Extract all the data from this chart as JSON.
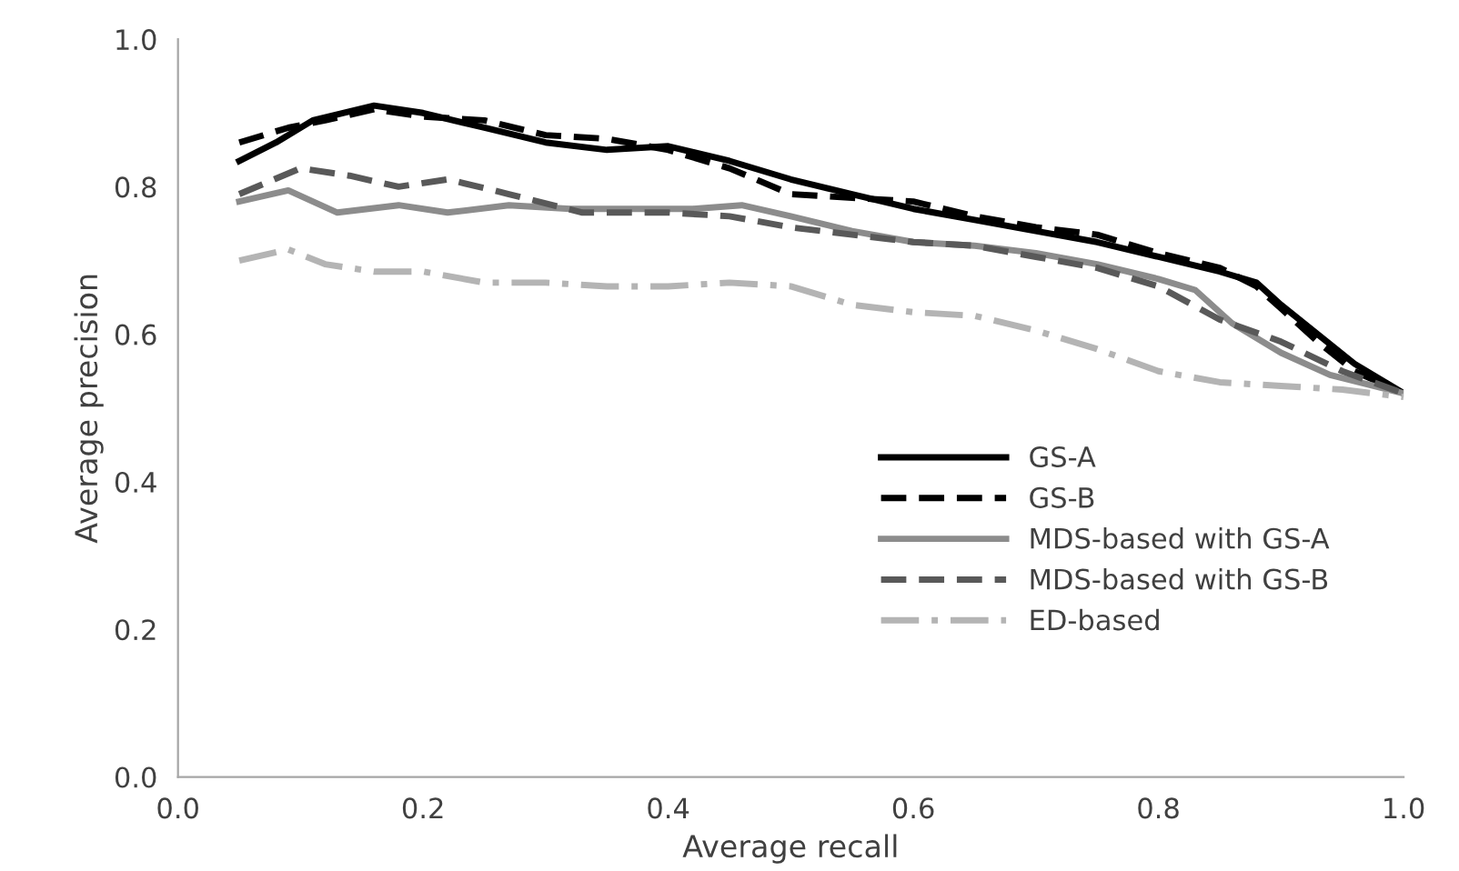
{
  "chart_data": {
    "type": "line",
    "xlabel": "Average recall",
    "ylabel": "Average precision",
    "xlim": [
      0.0,
      1.0
    ],
    "ylim": [
      0.0,
      1.0
    ],
    "xticks": [
      {
        "value": 0,
        "label": "0.0"
      },
      {
        "value": 0.2,
        "label": "0.2"
      },
      {
        "value": 0.4,
        "label": "0.4"
      },
      {
        "value": 0.6,
        "label": "0.6"
      },
      {
        "value": 0.8,
        "label": "0.8"
      },
      {
        "value": 1,
        "label": "1.0"
      }
    ],
    "yticks": [
      {
        "value": 0,
        "label": "0.0"
      },
      {
        "value": 0.2,
        "label": "0.2"
      },
      {
        "value": 0.4,
        "label": "0.4"
      },
      {
        "value": 0.6,
        "label": "0.6"
      },
      {
        "value": 0.8,
        "label": "0.8"
      },
      {
        "value": 1,
        "label": "1.0"
      }
    ],
    "grid": false,
    "legend": "right",
    "marker": "none",
    "series": [
      {
        "name": "GS-A",
        "color": "#000000",
        "line_style": "solid",
        "x": [
          0.05,
          0.08,
          0.11,
          0.16,
          0.2,
          0.25,
          0.3,
          0.35,
          0.4,
          0.45,
          0.5,
          0.55,
          0.6,
          0.65,
          0.7,
          0.75,
          0.8,
          0.85,
          0.88,
          0.9,
          0.93,
          0.96,
          1.0
        ],
        "values": [
          0.835,
          0.86,
          0.89,
          0.91,
          0.9,
          0.88,
          0.86,
          0.85,
          0.855,
          0.835,
          0.81,
          0.79,
          0.77,
          0.755,
          0.74,
          0.725,
          0.705,
          0.685,
          0.67,
          0.64,
          0.6,
          0.56,
          0.52
        ]
      },
      {
        "name": "GS-B",
        "color": "#000000",
        "line_style": "dashed",
        "x": [
          0.05,
          0.09,
          0.12,
          0.16,
          0.2,
          0.25,
          0.3,
          0.35,
          0.4,
          0.45,
          0.5,
          0.55,
          0.6,
          0.65,
          0.7,
          0.75,
          0.8,
          0.85,
          0.88,
          0.9,
          0.93,
          0.96,
          1.0
        ],
        "values": [
          0.86,
          0.88,
          0.89,
          0.905,
          0.895,
          0.89,
          0.87,
          0.865,
          0.85,
          0.825,
          0.79,
          0.785,
          0.78,
          0.76,
          0.745,
          0.735,
          0.71,
          0.69,
          0.665,
          0.635,
          0.59,
          0.55,
          0.52
        ]
      },
      {
        "name": "MDS-based with GS-A",
        "color": "#8c8c8c",
        "line_style": "solid",
        "x": [
          0.05,
          0.09,
          0.13,
          0.18,
          0.22,
          0.27,
          0.32,
          0.37,
          0.42,
          0.46,
          0.5,
          0.55,
          0.6,
          0.65,
          0.7,
          0.75,
          0.8,
          0.83,
          0.86,
          0.9,
          0.94,
          1.0
        ],
        "values": [
          0.78,
          0.795,
          0.765,
          0.775,
          0.765,
          0.775,
          0.77,
          0.77,
          0.77,
          0.775,
          0.76,
          0.74,
          0.725,
          0.72,
          0.71,
          0.695,
          0.675,
          0.66,
          0.615,
          0.575,
          0.545,
          0.52
        ]
      },
      {
        "name": "MDS-based with GS-B",
        "color": "#595959",
        "line_style": "dashed",
        "x": [
          0.05,
          0.1,
          0.14,
          0.18,
          0.22,
          0.27,
          0.33,
          0.4,
          0.45,
          0.5,
          0.55,
          0.6,
          0.65,
          0.7,
          0.75,
          0.8,
          0.85,
          0.9,
          0.95,
          1.0
        ],
        "values": [
          0.79,
          0.825,
          0.815,
          0.8,
          0.81,
          0.79,
          0.765,
          0.765,
          0.76,
          0.745,
          0.735,
          0.725,
          0.72,
          0.705,
          0.69,
          0.665,
          0.62,
          0.59,
          0.55,
          0.52
        ]
      },
      {
        "name": "ED-based",
        "color": "#b4b4b4",
        "line_style": "dashdot",
        "x": [
          0.05,
          0.09,
          0.12,
          0.16,
          0.2,
          0.25,
          0.3,
          0.35,
          0.4,
          0.45,
          0.5,
          0.55,
          0.6,
          0.65,
          0.7,
          0.75,
          0.8,
          0.85,
          0.9,
          0.95,
          1.0
        ],
        "values": [
          0.7,
          0.715,
          0.695,
          0.685,
          0.685,
          0.67,
          0.67,
          0.665,
          0.665,
          0.67,
          0.665,
          0.64,
          0.63,
          0.625,
          0.605,
          0.58,
          0.55,
          0.535,
          0.53,
          0.525,
          0.515
        ]
      }
    ]
  }
}
